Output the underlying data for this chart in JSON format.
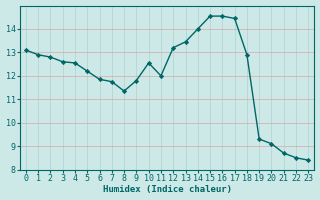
{
  "x": [
    0,
    1,
    2,
    3,
    4,
    5,
    6,
    7,
    8,
    9,
    10,
    11,
    12,
    13,
    14,
    15,
    16,
    17,
    18,
    19,
    20,
    21,
    22,
    23
  ],
  "y": [
    13.1,
    12.9,
    12.8,
    12.6,
    12.55,
    12.2,
    11.85,
    11.75,
    11.35,
    11.8,
    12.55,
    12.0,
    13.2,
    13.45,
    14.0,
    14.55,
    14.55,
    14.45,
    12.9,
    9.3,
    9.1,
    8.7,
    8.5,
    8.4
  ],
  "line_color": "#006666",
  "marker": "D",
  "marker_size": 2.2,
  "bg_color": "#cce9e8",
  "grid_color": "#b0d8d8",
  "xlabel": "Humidex (Indice chaleur)",
  "xlim": [
    -0.5,
    23.5
  ],
  "ylim": [
    8,
    15
  ],
  "yticks": [
    8,
    9,
    10,
    11,
    12,
    13,
    14
  ],
  "xticks": [
    0,
    1,
    2,
    3,
    4,
    5,
    6,
    7,
    8,
    9,
    10,
    11,
    12,
    13,
    14,
    15,
    16,
    17,
    18,
    19,
    20,
    21,
    22,
    23
  ],
  "xlabel_fontsize": 6.5,
  "tick_fontsize": 6,
  "line_width": 1.0,
  "tick_color": "#006666"
}
